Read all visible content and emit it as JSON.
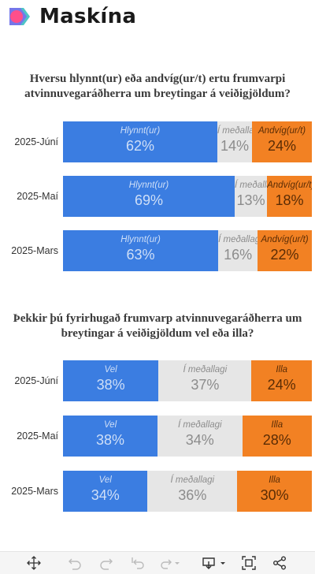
{
  "brand": {
    "name": "Maskína"
  },
  "colors": {
    "Hlynnt(ur)": "#3b7de1",
    "Í meðallagi": "#e6e6e6",
    "Andvíg(ur/t)": "#f28123",
    "Vel": "#3b7de1",
    "Illa": "#f28123"
  },
  "chart_data": [
    {
      "type": "bar",
      "orientation": "horizontal",
      "stacked": true,
      "percent": true,
      "title": "Hversu hlynnt(ur) eða andvíg(ur/t) ertu frumvarpi atvinnuvegaráðherra um breytingar á veiðigjöldum?",
      "categories": [
        "2025-Júní",
        "2025-Maí",
        "2025-Mars"
      ],
      "series": [
        {
          "name": "Hlynnt(ur)",
          "values": [
            62,
            69,
            63
          ],
          "labels": [
            "62%",
            "69%",
            "63%"
          ]
        },
        {
          "name": "Í meðallagi",
          "values": [
            14,
            13,
            16
          ],
          "labels": [
            "14%",
            "13%",
            "16%"
          ]
        },
        {
          "name": "Andvíg(ur/t)",
          "values": [
            24,
            18,
            22
          ],
          "labels": [
            "24%",
            "18%",
            "22%"
          ]
        }
      ]
    },
    {
      "type": "bar",
      "orientation": "horizontal",
      "stacked": true,
      "percent": true,
      "title": "Þekkir þú fyrirhugað frumvarp atvinnuvegaráðherra um breytingar á veiðigjöldum vel eða illa?",
      "categories": [
        "2025-Júní",
        "2025-Maí",
        "2025-Mars"
      ],
      "series": [
        {
          "name": "Vel",
          "values": [
            38,
            38,
            34
          ],
          "labels": [
            "38%",
            "38%",
            "34%"
          ]
        },
        {
          "name": "Í meðallagi",
          "values": [
            37,
            34,
            36
          ],
          "labels": [
            "37%",
            "34%",
            "36%"
          ]
        },
        {
          "name": "Illa",
          "values": [
            24,
            28,
            30
          ],
          "labels": [
            "24%",
            "28%",
            "30%"
          ]
        }
      ]
    }
  ],
  "toolbar": {
    "icons": [
      "move-icon",
      "undo-icon",
      "redo-icon",
      "revert-icon",
      "forward-icon",
      "download-icon",
      "fullscreen-icon",
      "share-icon"
    ]
  }
}
